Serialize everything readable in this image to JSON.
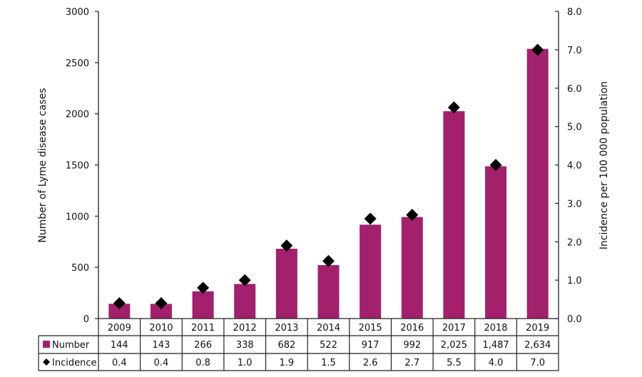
{
  "chart_data": {
    "type": "bar",
    "title": "",
    "categories": [
      "2009",
      "2010",
      "2011",
      "2012",
      "2013",
      "2014",
      "2015",
      "2016",
      "2017",
      "2018",
      "2019"
    ],
    "series": [
      {
        "name": "Number",
        "kind": "bar",
        "axis": "left",
        "color": "#A3206C",
        "values": [
          144,
          143,
          266,
          338,
          682,
          522,
          917,
          992,
          2025,
          1487,
          2634
        ],
        "display": [
          "144",
          "143",
          "266",
          "338",
          "682",
          "522",
          "917",
          "992",
          "2,025",
          "1,487",
          "2,634"
        ]
      },
      {
        "name": "Incidence",
        "kind": "marker",
        "marker": "diamond",
        "axis": "right",
        "color": "#000000",
        "values": [
          0.4,
          0.4,
          0.8,
          1.0,
          1.9,
          1.5,
          2.6,
          2.7,
          5.5,
          4.0,
          7.0
        ],
        "display": [
          "0.4",
          "0.4",
          "0.8",
          "1.0",
          "1.9",
          "1.5",
          "2.6",
          "2.7",
          "5.5",
          "4.0",
          "7.0"
        ]
      }
    ],
    "ylabel": "Number of Lyme disease cases",
    "y2label": "Incidence per 100 000 population",
    "xlabel": "",
    "ylim": [
      0,
      3000
    ],
    "y2lim": [
      0,
      8
    ],
    "yticks": [
      "0",
      "500",
      "1000",
      "1500",
      "2000",
      "2500",
      "3000"
    ],
    "y2ticks": [
      "0.0",
      "1.0",
      "2.0",
      "3.0",
      "4.0",
      "5.0",
      "6.0",
      "7.0",
      "8.0"
    ],
    "grid": false,
    "legend_position": "data-table-below"
  }
}
